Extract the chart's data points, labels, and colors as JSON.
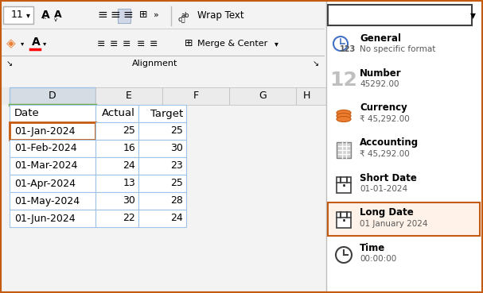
{
  "table_data": {
    "headers": [
      "Date",
      "Actual",
      "Target"
    ],
    "rows": [
      [
        "01-Jan-2024",
        "25",
        "25"
      ],
      [
        "01-Feb-2024",
        "16",
        "30"
      ],
      [
        "01-Mar-2024",
        "24",
        "23"
      ],
      [
        "01-Apr-2024",
        "13",
        "25"
      ],
      [
        "01-May-2024",
        "30",
        "28"
      ],
      [
        "01-Jun-2024",
        "22",
        "24"
      ]
    ]
  },
  "column_headers": [
    "D",
    "E",
    "F",
    "G"
  ],
  "format_panel": {
    "items": [
      {
        "title": "General",
        "subtitle": "No specific format"
      },
      {
        "title": "Number",
        "subtitle": "45292.00"
      },
      {
        "title": "Currency",
        "subtitle": "₹ 45,292.00"
      },
      {
        "title": "Accounting",
        "subtitle": "₹ 45,292.00"
      },
      {
        "title": "Short Date",
        "subtitle": "01-01-2024"
      },
      {
        "title": "Long Date",
        "subtitle": "01 January 2024"
      },
      {
        "title": "Time",
        "subtitle": "00:00:00"
      }
    ],
    "highlighted_item": "Long Date"
  },
  "colors": {
    "orange_border": "#C55A11",
    "orange_highlight": "#ED7D31",
    "table_border": "#9DC3E6",
    "toolbar_bg": "#F3F3F3",
    "selected_col_bg": "#D6DCE4",
    "white": "#FFFFFF",
    "black": "#000000",
    "dark_text": "#404040",
    "medium_gray": "#BFBFBF",
    "green_underline": "#70AD47",
    "blue_icon": "#4472C4"
  }
}
